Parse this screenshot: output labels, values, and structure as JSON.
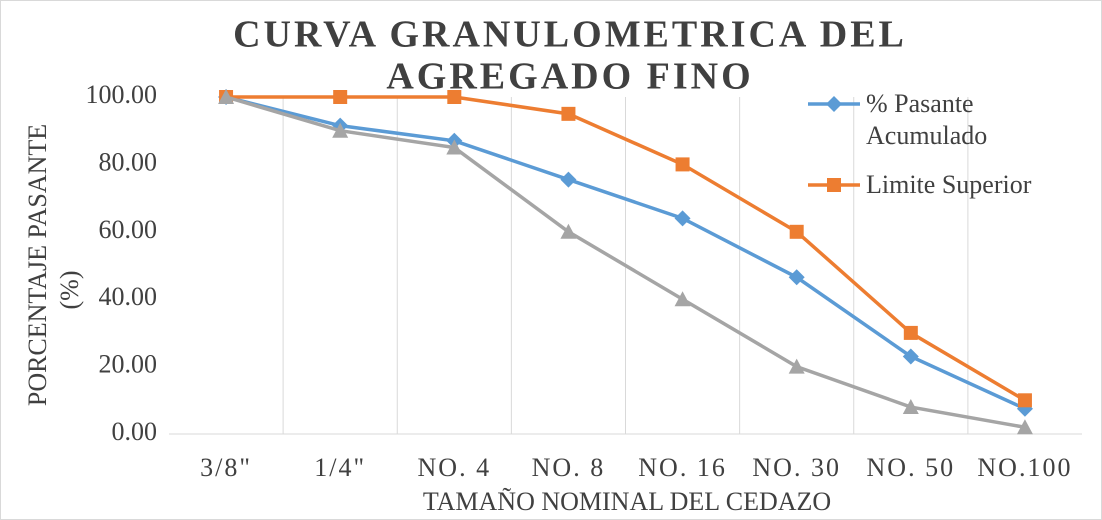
{
  "chart_data": {
    "type": "line",
    "title": [
      "CURVA GRANULOMETRICA DEL",
      "AGREGADO FINO"
    ],
    "y_label": [
      "PORCENTAJE PASANTE",
      "(%)"
    ],
    "x_label": "TAMAÑO NOMINAL DEL CEDAZO",
    "categories": [
      "3/8\"",
      "1/4\"",
      "NO. 4",
      "NO. 8",
      "NO. 16",
      "NO. 30",
      "NO. 50",
      "NO.100"
    ],
    "series": [
      {
        "name": "% Pasante Acumulado",
        "color": "#5b9bd5",
        "marker": "diamond",
        "values": [
          100,
          91.5,
          87,
          75.5,
          64,
          46.5,
          23,
          7.5
        ]
      },
      {
        "name": "Limite Superior",
        "color": "#ed7d31",
        "marker": "square",
        "values": [
          100,
          100,
          100,
          95,
          80,
          60,
          30,
          10
        ]
      },
      {
        "color": "#a5a5a5",
        "marker": "triangle",
        "values": [
          100,
          90,
          85,
          60,
          40,
          20,
          8,
          2
        ]
      }
    ],
    "ylim": [
      0,
      100
    ],
    "yticks": [
      {
        "value": 0,
        "label": "0.00"
      },
      {
        "value": 20,
        "label": "20.00"
      },
      {
        "value": 40,
        "label": "40.00"
      },
      {
        "value": 60,
        "label": "60.00"
      },
      {
        "value": 80,
        "label": "80.00"
      },
      {
        "value": 100,
        "label": "100.00"
      }
    ],
    "xgrid": true,
    "legend": "top-right"
  }
}
